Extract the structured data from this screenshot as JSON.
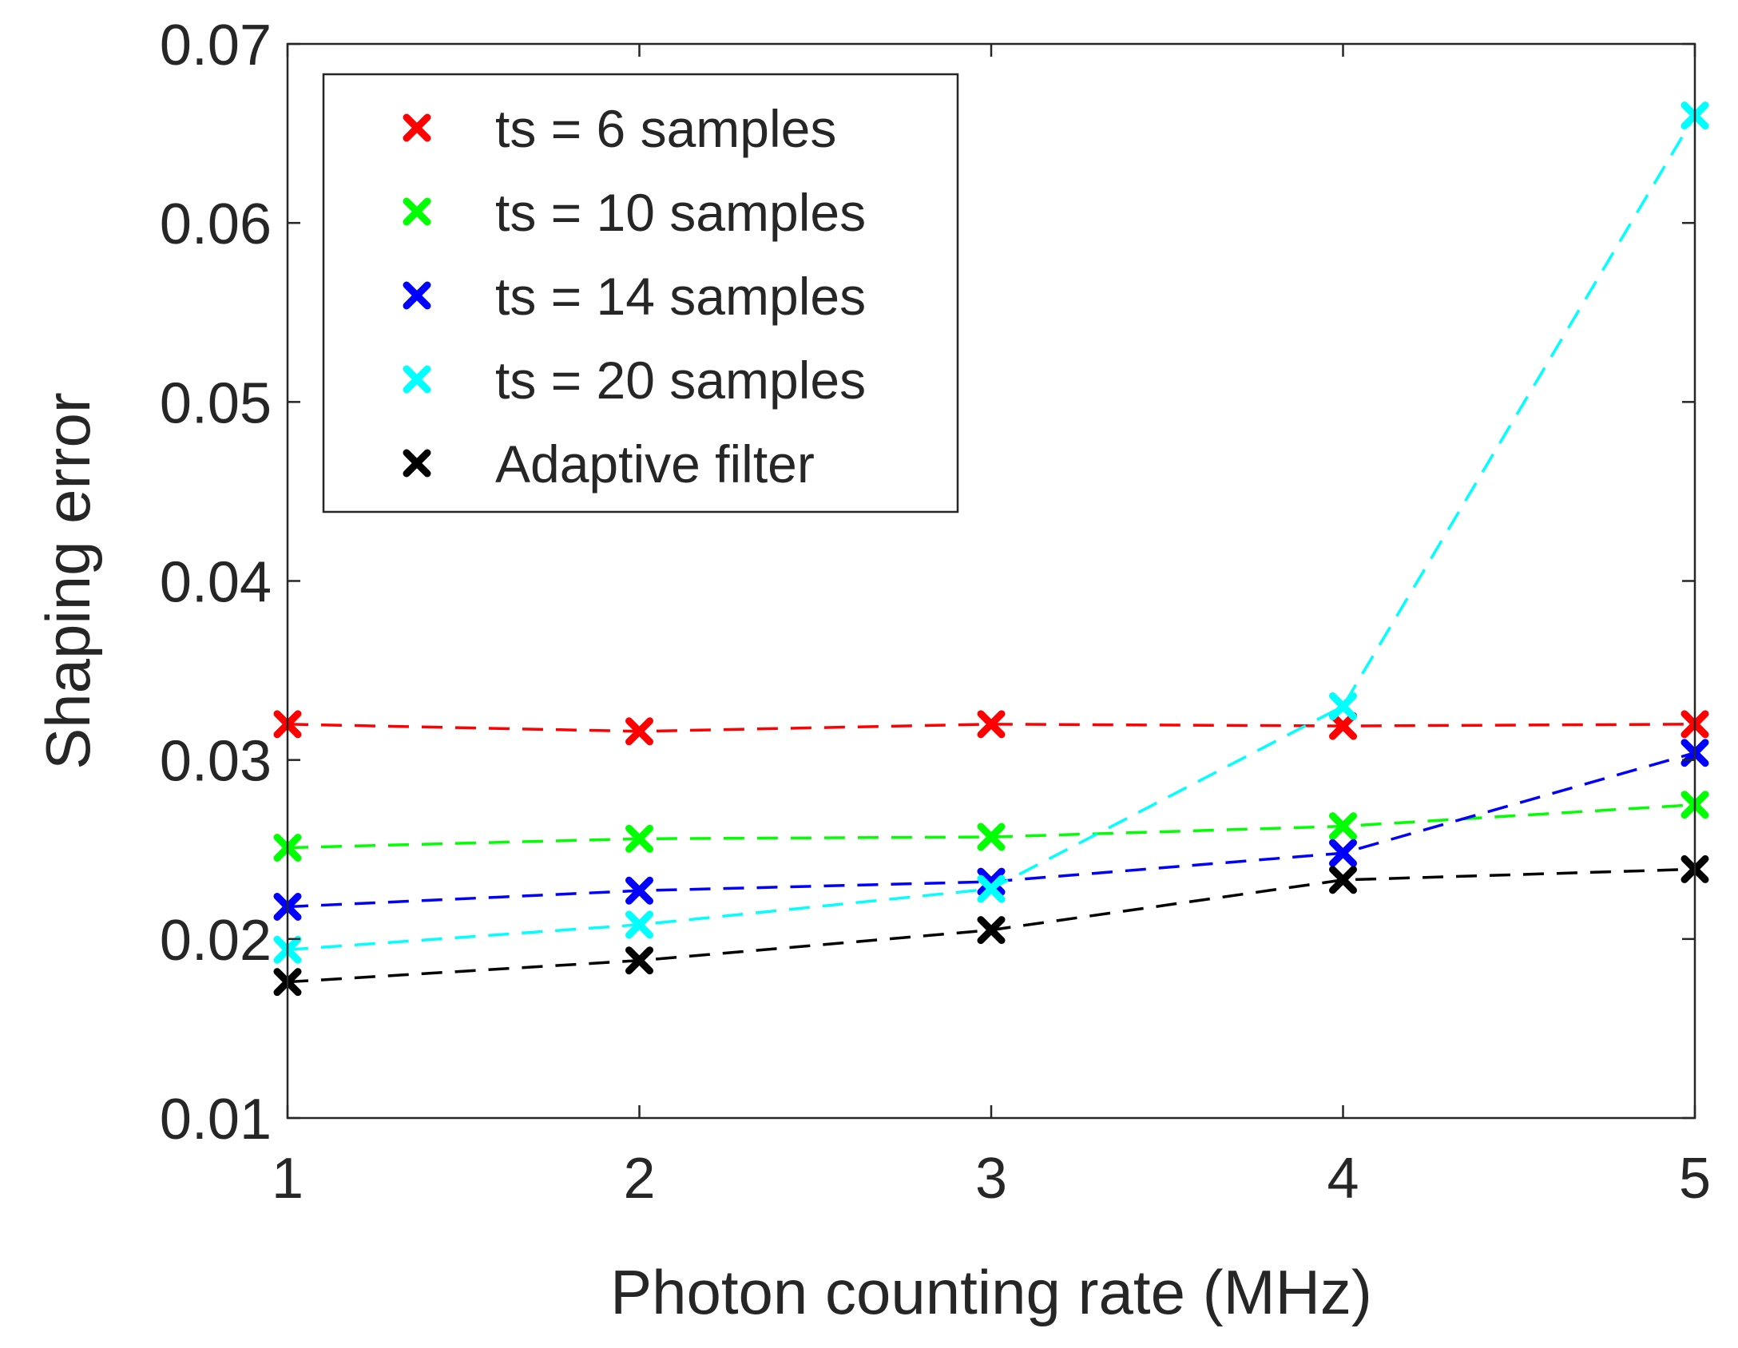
{
  "chart_data": {
    "type": "line",
    "title": "",
    "xlabel": "Photon counting rate (MHz)",
    "ylabel": "Shaping error",
    "x": [
      1,
      2,
      3,
      4,
      5
    ],
    "xlim": [
      1,
      5
    ],
    "ylim": [
      0.01,
      0.07
    ],
    "xticks": [
      1,
      2,
      3,
      4,
      5
    ],
    "xtick_labels": [
      "1",
      "2",
      "3",
      "4",
      "5"
    ],
    "yticks": [
      0.01,
      0.02,
      0.03,
      0.04,
      0.05,
      0.06,
      0.07
    ],
    "ytick_labels": [
      "0.01",
      "0.02",
      "0.03",
      "0.04",
      "0.05",
      "0.06",
      "0.07"
    ],
    "grid": false,
    "line_style": "dashed",
    "marker": "x",
    "legend_position": "top-left",
    "series": [
      {
        "name": "ts = 6 samples",
        "color": "#ff0000",
        "values": [
          0.032,
          0.0316,
          0.032,
          0.0319,
          0.032
        ]
      },
      {
        "name": "ts = 10 samples",
        "color": "#00ff00",
        "values": [
          0.0251,
          0.0256,
          0.0257,
          0.0263,
          0.0275
        ]
      },
      {
        "name": "ts = 14 samples",
        "color": "#0000ff",
        "values": [
          0.0218,
          0.0227,
          0.0232,
          0.0248,
          0.0304
        ]
      },
      {
        "name": "ts = 20 samples",
        "color": "#00ffff",
        "values": [
          0.0194,
          0.0208,
          0.0228,
          0.033,
          0.066
        ]
      },
      {
        "name": "Adaptive filter",
        "color": "#000000",
        "values": [
          0.0176,
          0.0188,
          0.0205,
          0.0233,
          0.0239
        ]
      }
    ]
  }
}
